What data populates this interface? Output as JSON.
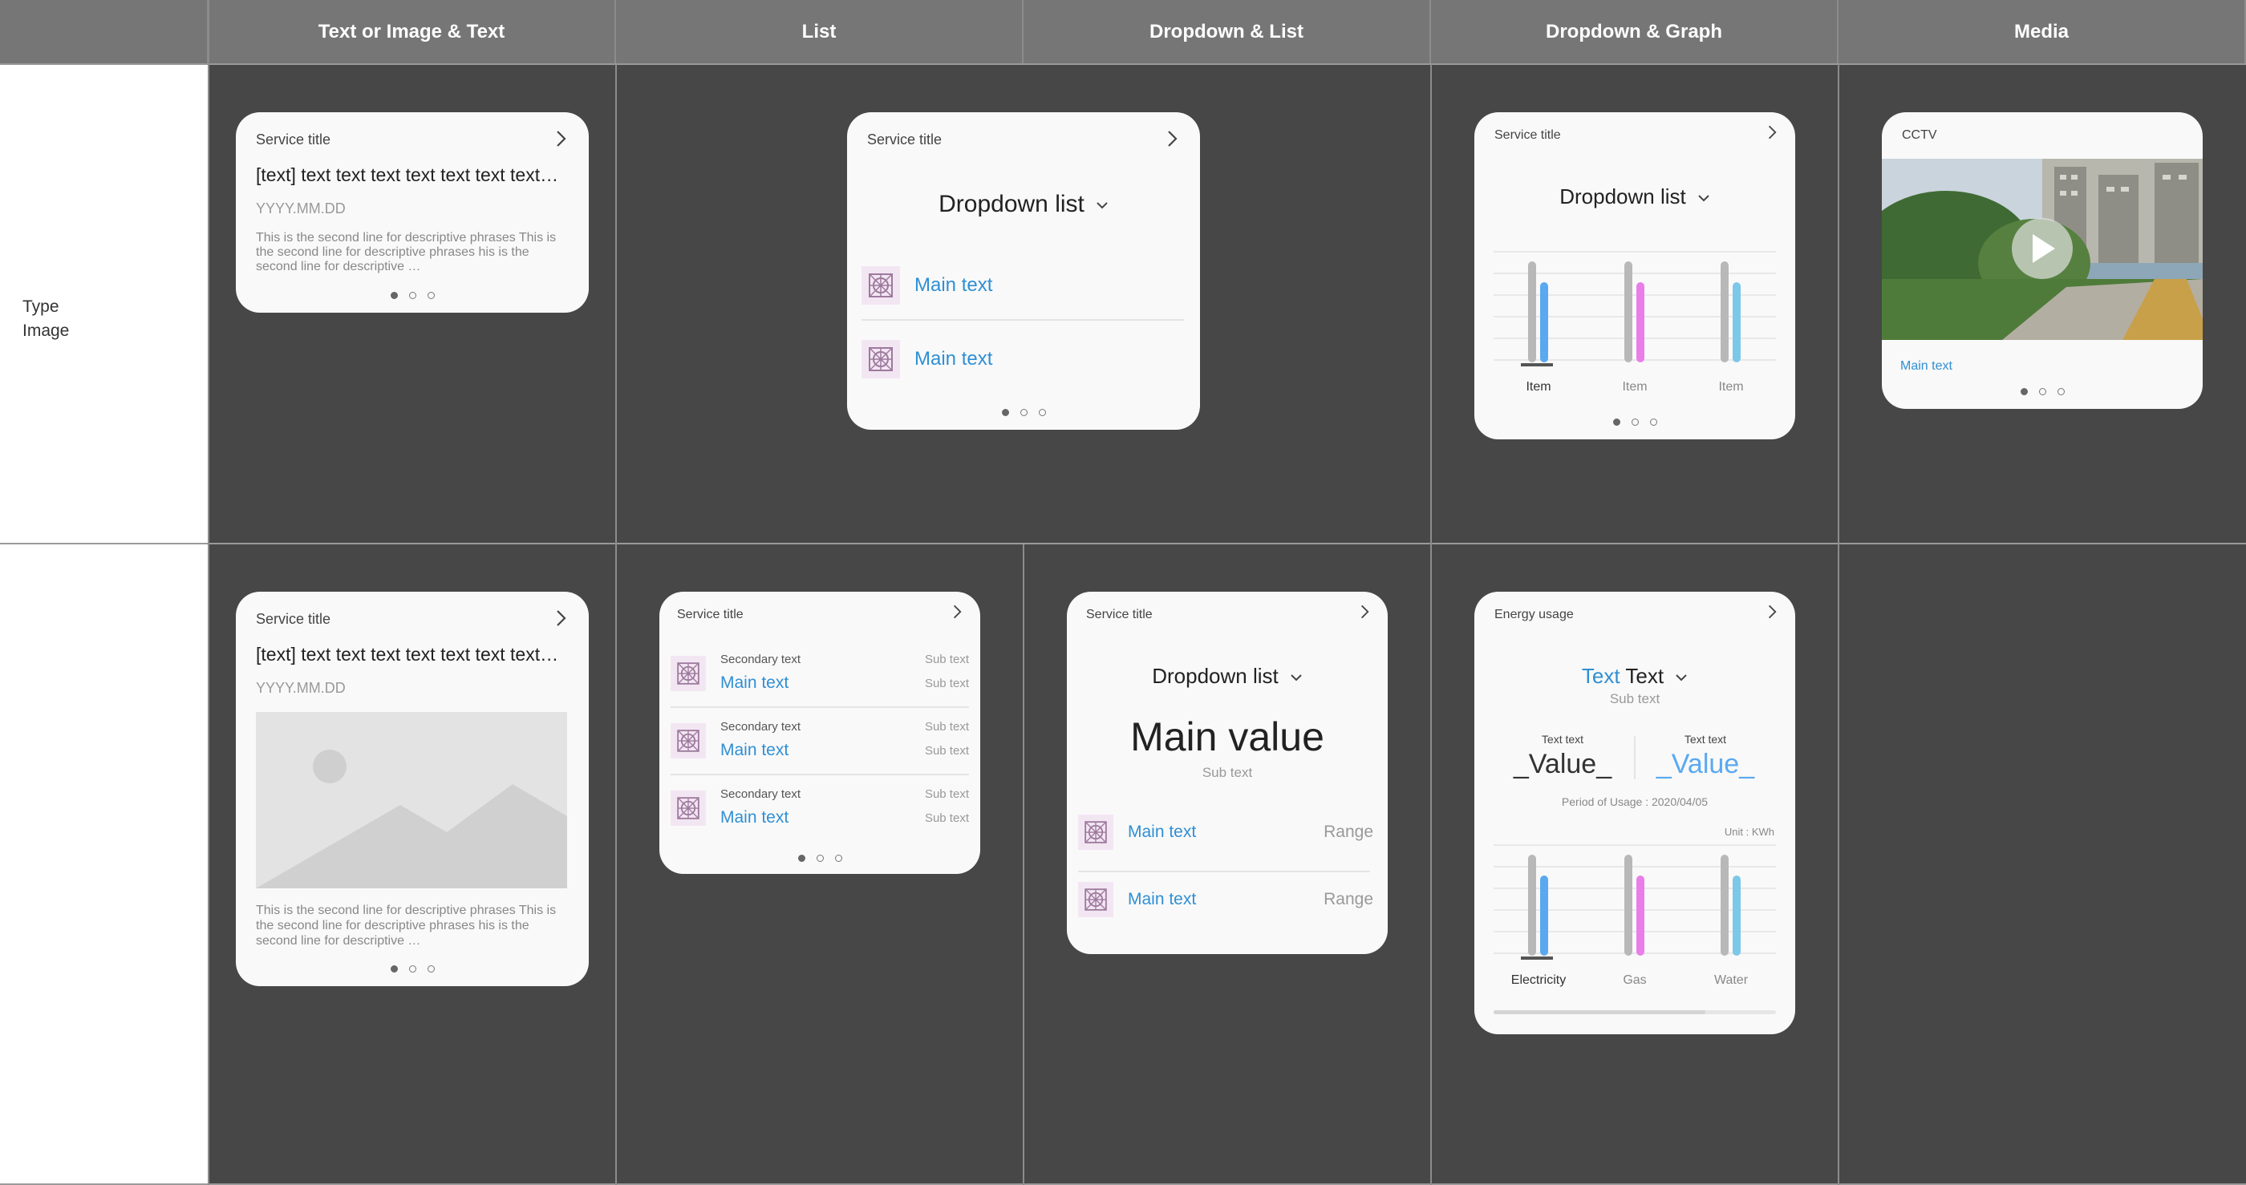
{
  "headers": [
    "Text or Image & Text",
    "List",
    "Dropdown & List",
    "Dropdown & Graph",
    "Media"
  ],
  "row_label": {
    "line1": "Type",
    "line2": "Image"
  },
  "card_ti1": {
    "title": "Service title",
    "headline": "[text] text text text text text text text…",
    "date": "YYYY.MM.DD",
    "desc": "This is the second line for descriptive phrases This is the second line for descriptive phrases his is the second line for descriptive …"
  },
  "card_list1": {
    "title": "Service title",
    "dropdown": "Dropdown list",
    "items": [
      "Main text",
      "Main text"
    ]
  },
  "card_graph1": {
    "title": "Service title",
    "dropdown": "Dropdown list",
    "items": [
      "Item",
      "Item",
      "Item"
    ]
  },
  "card_media": {
    "title": "CCTV",
    "caption": "Main text"
  },
  "card_ti2": {
    "title": "Service title",
    "headline": "[text] text text text text text text text…",
    "date": "YYYY.MM.DD",
    "desc": "This is the second line for descriptive phrases This is the second line for descriptive phrases his is the second line for descriptive …"
  },
  "card_list2": {
    "title": "Service title",
    "rows": [
      {
        "secondary": "Secondary text",
        "main": "Main text",
        "sub1": "Sub text",
        "sub2": "Sub text"
      },
      {
        "secondary": "Secondary text",
        "main": "Main text",
        "sub1": "Sub text",
        "sub2": "Sub text"
      },
      {
        "secondary": "Secondary text",
        "main": "Main text",
        "sub1": "Sub text",
        "sub2": "Sub text"
      }
    ]
  },
  "card_ddlist": {
    "title": "Service title",
    "dropdown": "Dropdown list",
    "value": "Main value",
    "subtext": "Sub text",
    "items": [
      {
        "main": "Main text",
        "range": "Range"
      },
      {
        "main": "Main text",
        "range": "Range"
      }
    ]
  },
  "card_energy": {
    "title": "Energy usage",
    "dd_blue": "Text",
    "dd_black": "Text",
    "subtext": "Sub text",
    "v1_label": "Text text",
    "v1": "_Value_",
    "v2_label": "Text text",
    "v2": "_Value_",
    "period": "Period of Usage : 2020/04/05",
    "unit": "Unit : KWh",
    "items": [
      "Electricity",
      "Gas",
      "Water"
    ]
  },
  "colors": {
    "background": "#474747",
    "header": "#767676",
    "card": "#f9f9f9",
    "accent_blue": "#2f8fd4",
    "bar_grey": "#b8b8b8",
    "bar_blue": "#5aa9f0",
    "bar_pink": "#ea7ee9",
    "bar_cyan": "#7cc8e8"
  }
}
